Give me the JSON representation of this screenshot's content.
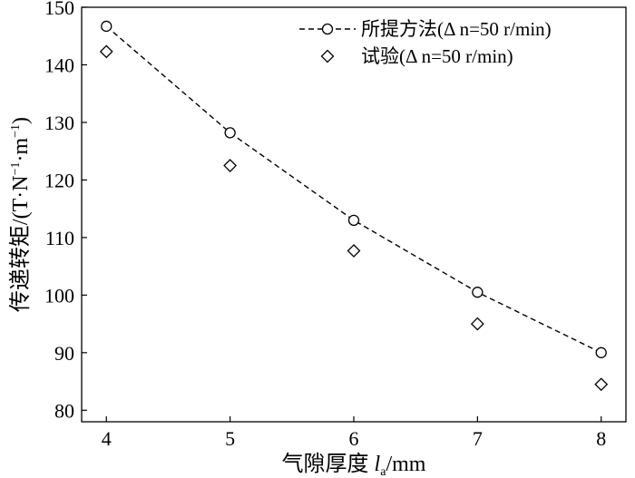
{
  "chart_data": {
    "type": "line",
    "x": [
      4,
      5,
      6,
      7,
      8
    ],
    "series": [
      {
        "name": "所提方法(Δ n=50 r/min)",
        "style": "dashed-line-circle",
        "values": [
          146.7,
          128.2,
          113.0,
          100.5,
          90.0
        ]
      },
      {
        "name": "试验(Δ n=50 r/min)",
        "style": "diamond-markers",
        "values": [
          142.3,
          122.5,
          107.7,
          95.0,
          84.5
        ]
      }
    ],
    "xlabel": {
      "main": "气隙厚度 ",
      "var": "l",
      "sub": "a",
      "unit": "/mm"
    },
    "ylabel": {
      "main": "传递转矩/(T·N",
      "sup1": "−1",
      "mid": "·m",
      "sup2": "−1",
      "end": ")"
    },
    "xlim": [
      3.8,
      8.2
    ],
    "ylim": [
      78,
      150
    ],
    "xticks": [
      "4",
      "5",
      "6",
      "7",
      "8"
    ],
    "yticks": [
      "80",
      "90",
      "100",
      "110",
      "120",
      "130",
      "140",
      "150"
    ],
    "ytick_values": [
      80,
      90,
      100,
      110,
      120,
      130,
      140,
      150
    ],
    "legend_position": "top-right",
    "grid": false
  }
}
